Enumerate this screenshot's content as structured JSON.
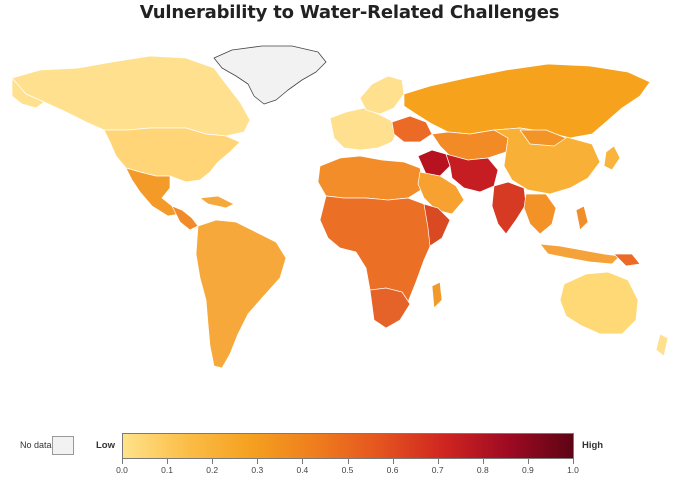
{
  "title": "Vulnerability to Water-Related Challenges",
  "legend": {
    "no_data_label": "No data",
    "no_data_color": "#f2f2f2",
    "low_label": "Low",
    "high_label": "High",
    "scale_min": 0.0,
    "scale_max": 1.0,
    "ticks": [
      "0.0",
      "0.1",
      "0.2",
      "0.3",
      "0.4",
      "0.5",
      "0.6",
      "0.7",
      "0.8",
      "0.9",
      "1.0"
    ],
    "gradient_stops": [
      "#ffe38a",
      "#fbbd47",
      "#f5a01f",
      "#ef7d1e",
      "#e4541f",
      "#cf2521",
      "#9e0a22",
      "#5e0414"
    ]
  },
  "map": {
    "type": "choropleth",
    "scope": "world",
    "regions": [
      {
        "name": "Greenland",
        "level": null
      },
      {
        "name": "Canada",
        "level": 0.05
      },
      {
        "name": "United States",
        "level": 0.09
      },
      {
        "name": "Mexico",
        "level": 0.3
      },
      {
        "name": "Central America",
        "level": 0.33
      },
      {
        "name": "South America",
        "level": 0.23
      },
      {
        "name": "Western Europe",
        "level": 0.08
      },
      {
        "name": "Eastern Europe",
        "level": 0.28
      },
      {
        "name": "Russia",
        "level": 0.2
      },
      {
        "name": "Central Asia",
        "level": 0.32
      },
      {
        "name": "China",
        "level": 0.2
      },
      {
        "name": "Middle East",
        "level": 0.72
      },
      {
        "name": "South Asia",
        "level": 0.55
      },
      {
        "name": "North Africa",
        "level": 0.35
      },
      {
        "name": "Sub-Saharan Africa",
        "level": 0.38
      },
      {
        "name": "Horn of Africa",
        "level": 0.55
      },
      {
        "name": "Southeast Asia",
        "level": 0.3
      },
      {
        "name": "Australia",
        "level": 0.08
      }
    ]
  }
}
